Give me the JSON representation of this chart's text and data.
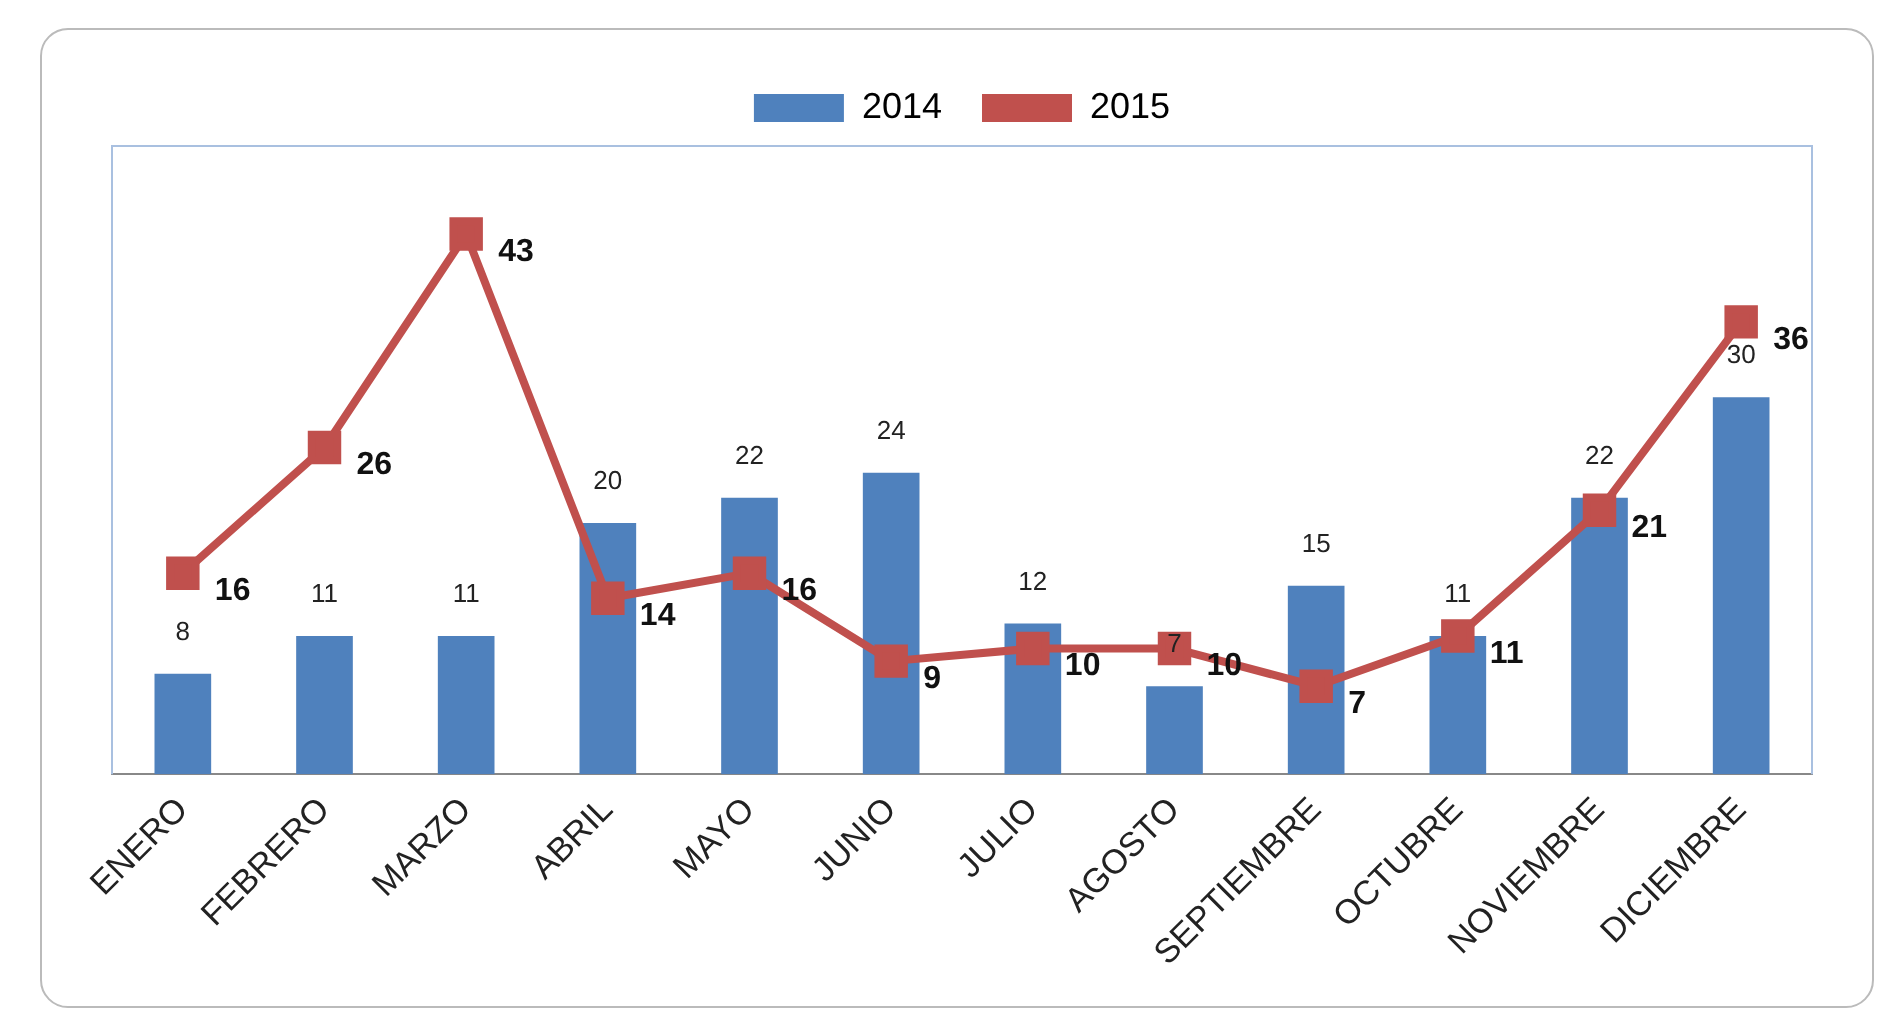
{
  "chart_data": {
    "type": "bar",
    "categories": [
      "ENERO",
      "FEBRERO",
      "MARZO",
      "ABRIL",
      "MAYO",
      "JUNIO",
      "JULIO",
      "AGOSTO",
      "SEPTIEMBRE",
      "OCTUBRE",
      "NOVIEMBRE",
      "DICIEMBRE"
    ],
    "series": [
      {
        "name": "2014",
        "color": "#4f81bd",
        "values": [
          8,
          11,
          11,
          20,
          22,
          24,
          12,
          7,
          15,
          11,
          22,
          30
        ]
      },
      {
        "name": "2015",
        "type": "line",
        "color": "#c0504d",
        "values": [
          16,
          26,
          43,
          14,
          16,
          9,
          10,
          10,
          7,
          11,
          21,
          36
        ]
      }
    ],
    "ylim": [
      0,
      50
    ],
    "tick_labels": "x",
    "data_labels": true,
    "legend": "top",
    "marker": "square",
    "line_style": "solid",
    "grid": false
  }
}
